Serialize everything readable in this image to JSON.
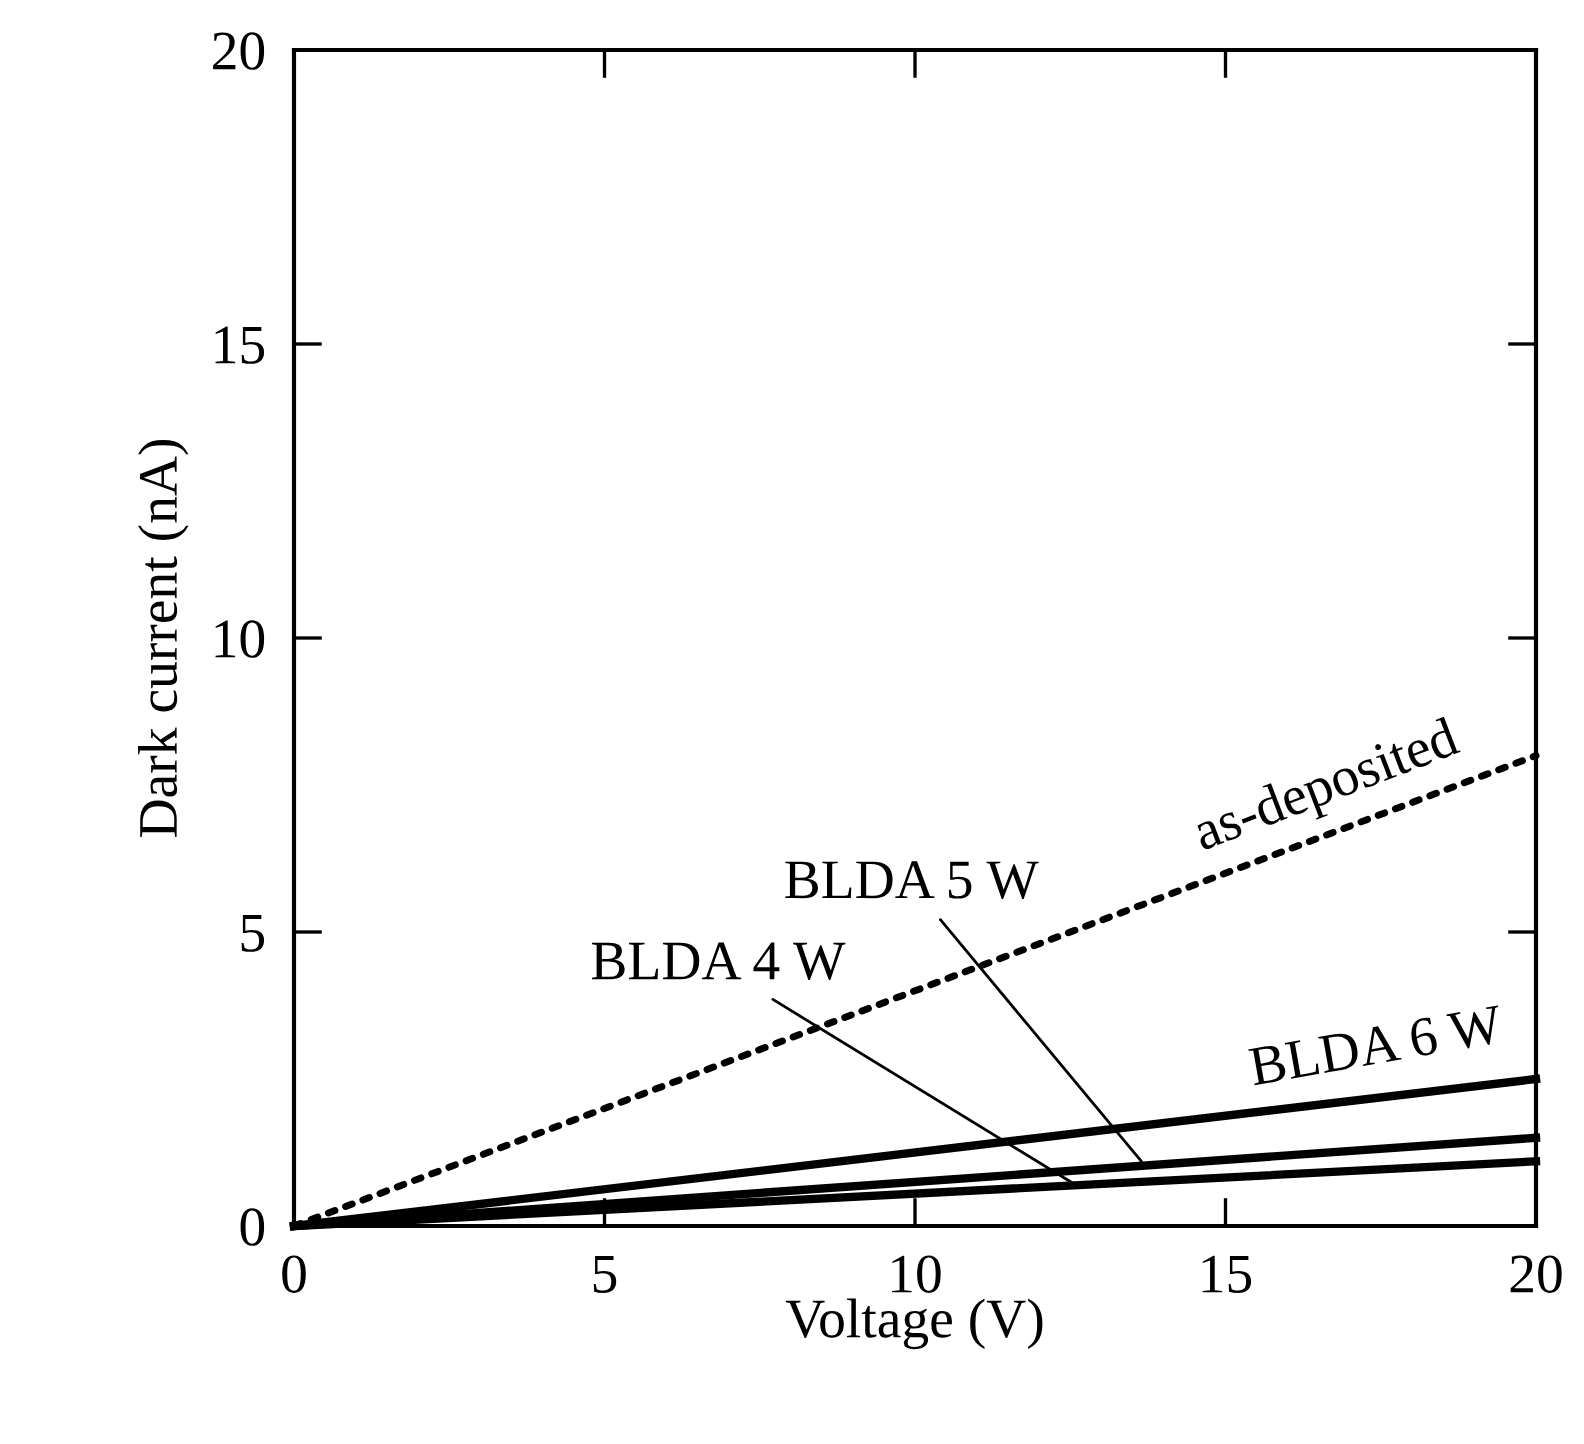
{
  "chart_data": {
    "type": "line",
    "xlabel": "Voltage (V)",
    "ylabel": "Dark current (nA)",
    "x": [
      0,
      20
    ],
    "xlim": [
      0,
      20
    ],
    "ylim": [
      0,
      20
    ],
    "xticks": [
      0,
      5,
      10,
      15,
      20
    ],
    "yticks": [
      0,
      5,
      10,
      15,
      20
    ],
    "grid": false,
    "legend": false,
    "series": [
      {
        "color": "#000000",
        "values": [
          0,
          8
        ],
        "line_style": "dotted"
      },
      {
        "color": "#000000",
        "values": [
          0,
          2.5
        ],
        "line_style": "solid"
      },
      {
        "color": "#000000",
        "values": [
          0,
          1.5
        ],
        "line_style": "solid"
      },
      {
        "color": "#000000",
        "values": [
          0,
          1.1
        ],
        "line_style": "solid"
      }
    ],
    "annotations": [
      {
        "text": "as-deposited",
        "x": 17,
        "y": 6.8
      },
      {
        "text": "BLDA 6 W",
        "x": 17.5,
        "y": 2.19
      },
      {
        "text": "BLDA 5 W",
        "x": 13.7,
        "y": 1.03
      },
      {
        "text": "BLDA 4 W",
        "x": 12.6,
        "y": 0.69
      }
    ]
  }
}
